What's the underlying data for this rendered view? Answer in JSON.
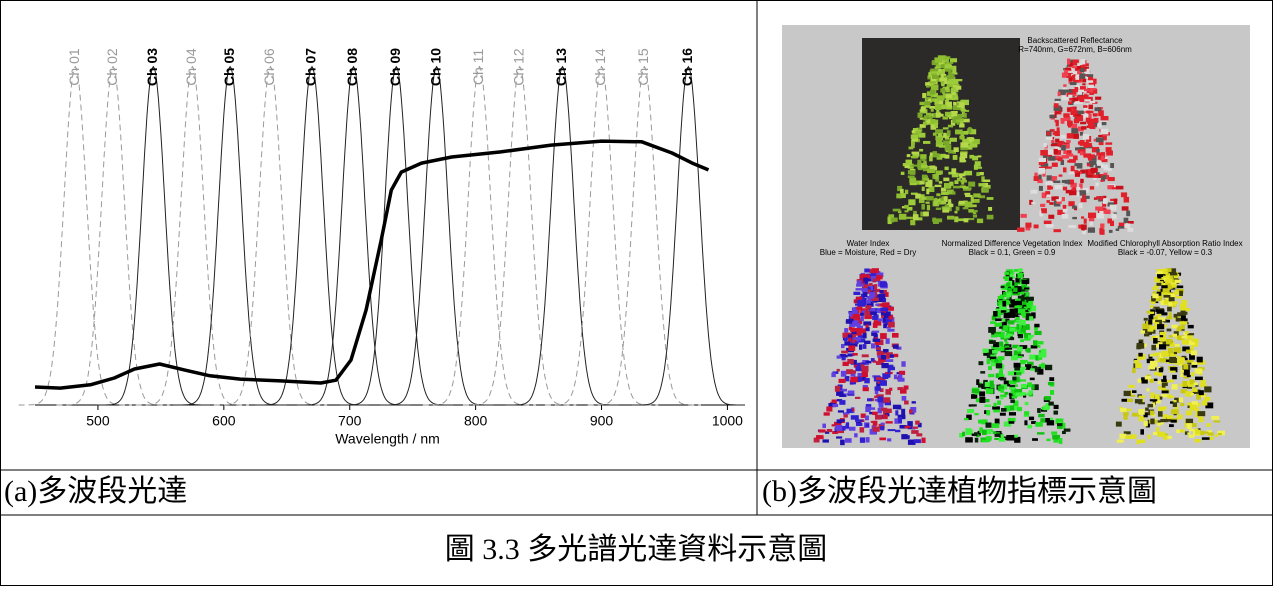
{
  "chart_data": {
    "type": "line",
    "x": [
      450,
      470,
      494,
      513,
      529,
      549,
      569,
      589,
      613,
      645,
      677,
      689,
      701,
      713,
      725,
      733,
      741,
      757,
      781,
      820,
      860,
      900,
      932,
      956,
      972,
      985
    ],
    "values": [
      0.05,
      0.047,
      0.056,
      0.075,
      0.1,
      0.114,
      0.097,
      0.081,
      0.072,
      0.067,
      0.061,
      0.069,
      0.125,
      0.264,
      0.458,
      0.597,
      0.647,
      0.672,
      0.689,
      0.703,
      0.722,
      0.733,
      0.731,
      0.7,
      0.672,
      0.653
    ],
    "color": "#000000",
    "channels": [
      {
        "name": "Ch 01",
        "center": 482,
        "style": "dashed"
      },
      {
        "name": "Ch 02",
        "center": 512,
        "style": "dashed"
      },
      {
        "name": "Ch 03",
        "center": 544,
        "style": "solid"
      },
      {
        "name": "Ch 04",
        "center": 575,
        "style": "dashed"
      },
      {
        "name": "Ch 05",
        "center": 605,
        "style": "solid"
      },
      {
        "name": "Ch 06",
        "center": 637,
        "style": "dashed"
      },
      {
        "name": "Ch 07",
        "center": 670,
        "style": "solid"
      },
      {
        "name": "Ch 08",
        "center": 703,
        "style": "solid"
      },
      {
        "name": "Ch 09",
        "center": 737,
        "style": "solid"
      },
      {
        "name": "Ch 10",
        "center": 769,
        "style": "solid"
      },
      {
        "name": "Ch 11",
        "center": 803,
        "style": "dashed"
      },
      {
        "name": "Ch 12",
        "center": 835,
        "style": "dashed"
      },
      {
        "name": "Ch 13",
        "center": 869,
        "style": "solid"
      },
      {
        "name": "Ch 14",
        "center": 900,
        "style": "dashed"
      },
      {
        "name": "Ch 15",
        "center": 934,
        "style": "dashed"
      },
      {
        "name": "Ch 16",
        "center": 969,
        "style": "solid"
      }
    ],
    "xlim": [
      450,
      1010
    ],
    "xticks": [
      500,
      600,
      700,
      800,
      900,
      1000
    ],
    "xlabel": "Wavelength / nm"
  },
  "panel_b": {
    "reflectance_title": "Backscattered Reflectance",
    "reflectance_note": "R=740nm, G=672nm, B=606nm",
    "water_title": "Water Index",
    "water_note": "Blue = Moisture, Red = Dry",
    "ndvi_title": "Normalized Difference Vegetation Index",
    "ndvi_note": "Black = 0.1, Green = 0.9",
    "mcari_title": "Modified Chlorophyll Absorption Ratio Index",
    "mcari_note": "Black = -0.07, Yellow = 0.3"
  },
  "captions": {
    "a": "(a)多波段光達",
    "b": "(b)多波段光達植物指標示意圖",
    "figure": "圖 3.3 多光譜光達資料示意圖"
  }
}
